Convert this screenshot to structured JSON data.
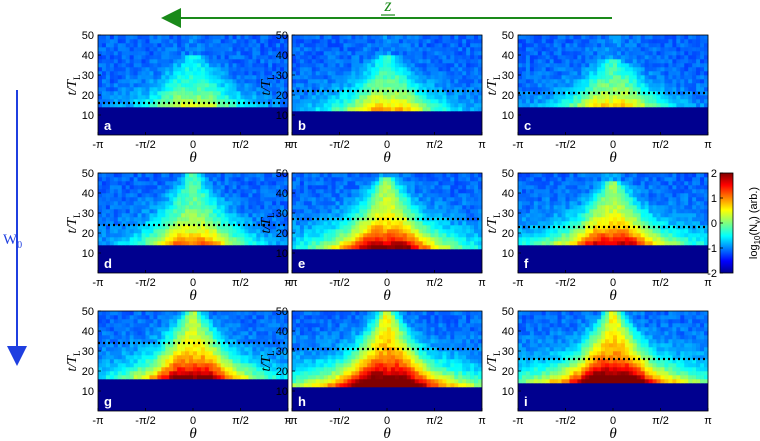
{
  "figure": {
    "top_arrow_label": "z",
    "left_arrow_label": "W",
    "left_arrow_subscript": "0",
    "colors": {
      "top_arrow": "#1a8a1a",
      "left_arrow": "#1f3fe0",
      "threshold_line": "#000000"
    }
  },
  "chart_data": [
    {
      "type": "heatmap",
      "panel": "a",
      "xlabel": "θ",
      "ylabel": "t/T",
      "ylabel_sub": "L",
      "xticks": [
        "-π",
        "-π/2",
        "0",
        "π/2",
        "π"
      ],
      "yticks": [
        "10",
        "20",
        "30",
        "40",
        "50"
      ],
      "xlim": [
        -3.1416,
        3.1416
      ],
      "ylim": [
        0,
        50
      ],
      "threshold_t": 16,
      "intensity": 0.35,
      "emission_start_t": 14.5,
      "wing_width": 1.0,
      "cone_top_t": 40
    },
    {
      "type": "heatmap",
      "panel": "b",
      "xlabel": "θ",
      "ylabel": "t/T",
      "ylabel_sub": "L",
      "xticks": [
        "-π",
        "-π/2",
        "0",
        "π/2",
        "π"
      ],
      "yticks": [
        "10",
        "20",
        "30",
        "40",
        "50"
      ],
      "xlim": [
        -3.1416,
        3.1416
      ],
      "ylim": [
        0,
        50
      ],
      "threshold_t": 22,
      "intensity": 0.45,
      "emission_start_t": 13,
      "wing_width": 1.1,
      "cone_top_t": 40
    },
    {
      "type": "heatmap",
      "panel": "c",
      "xlabel": "θ",
      "ylabel": "t/T",
      "ylabel_sub": "L",
      "xticks": [
        "-π",
        "-π/2",
        "0",
        "π/2",
        "π"
      ],
      "yticks": [
        "10",
        "20",
        "30",
        "40",
        "50"
      ],
      "xlim": [
        -3.1416,
        3.1416
      ],
      "ylim": [
        0,
        50
      ],
      "threshold_t": 21,
      "intensity": 0.45,
      "emission_start_t": 14,
      "wing_width": 1.0,
      "cone_top_t": 38
    },
    {
      "type": "heatmap",
      "panel": "d",
      "xlabel": "θ",
      "ylabel": "t/T",
      "ylabel_sub": "L",
      "xticks": [
        "-π",
        "-π/2",
        "0",
        "π/2",
        "π"
      ],
      "yticks": [
        "10",
        "20",
        "30",
        "40",
        "50"
      ],
      "xlim": [
        -3.1416,
        3.1416
      ],
      "ylim": [
        0,
        50
      ],
      "threshold_t": 24,
      "intensity": 0.55,
      "emission_start_t": 14,
      "wing_width": 1.0,
      "cone_top_t": 50
    },
    {
      "type": "heatmap",
      "panel": "e",
      "xlabel": "θ",
      "ylabel": "t/T",
      "ylabel_sub": "L",
      "xticks": [
        "-π",
        "-π/2",
        "0",
        "π/2",
        "π"
      ],
      "yticks": [
        "10",
        "20",
        "30",
        "40",
        "50"
      ],
      "xlim": [
        -3.1416,
        3.1416
      ],
      "ylim": [
        0,
        50
      ],
      "threshold_t": 27,
      "intensity": 0.75,
      "emission_start_t": 13,
      "wing_width": 1.4,
      "cone_top_t": 48
    },
    {
      "type": "heatmap",
      "panel": "f",
      "xlabel": "θ",
      "ylabel": "t/T",
      "ylabel_sub": "L",
      "xticks": [
        "-π",
        "-π/2",
        "0",
        "π/2",
        "π"
      ],
      "yticks": [
        "10",
        "20",
        "30",
        "40",
        "50"
      ],
      "xlim": [
        -3.1416,
        3.1416
      ],
      "ylim": [
        0,
        50
      ],
      "threshold_t": 23,
      "intensity": 0.7,
      "emission_start_t": 14,
      "wing_width": 1.5,
      "cone_top_t": 46
    },
    {
      "type": "heatmap",
      "panel": "g",
      "xlabel": "θ",
      "ylabel": "t/T",
      "ylabel_sub": "L",
      "xticks": [
        "-π",
        "-π/2",
        "0",
        "π/2",
        "π"
      ],
      "yticks": [
        "10",
        "20",
        "30",
        "40",
        "50"
      ],
      "xlim": [
        -3.1416,
        3.1416
      ],
      "ylim": [
        0,
        50
      ],
      "threshold_t": 34,
      "intensity": 0.8,
      "emission_start_t": 16,
      "wing_width": 1.3,
      "cone_top_t": 50
    },
    {
      "type": "heatmap",
      "panel": "h",
      "xlabel": "θ",
      "ylabel": "t/T",
      "ylabel_sub": "L",
      "xticks": [
        "-π",
        "-π/2",
        "0",
        "π/2",
        "π"
      ],
      "yticks": [
        "10",
        "20",
        "30",
        "40",
        "50"
      ],
      "xlim": [
        -3.1416,
        3.1416
      ],
      "ylim": [
        0,
        50
      ],
      "threshold_t": 31,
      "intensity": 0.95,
      "emission_start_t": 13,
      "wing_width": 1.8,
      "cone_top_t": 50
    },
    {
      "type": "heatmap",
      "panel": "i",
      "xlabel": "θ",
      "ylabel": "t/T",
      "ylabel_sub": "L",
      "xticks": [
        "-π",
        "-π/2",
        "0",
        "π/2",
        "π"
      ],
      "yticks": [
        "10",
        "20",
        "30",
        "40",
        "50"
      ],
      "xlim": [
        -3.1416,
        3.1416
      ],
      "ylim": [
        0,
        50
      ],
      "threshold_t": 26,
      "intensity": 0.95,
      "emission_start_t": 14,
      "wing_width": 1.8,
      "cone_top_t": 50
    }
  ],
  "colorbar": {
    "label": "log",
    "label_sub": "10",
    "label_rest": "(N",
    "label_sub2": "γ",
    "label_end": ") (arb.)",
    "ticks": [
      "2",
      "1",
      "0",
      "-1",
      "-2"
    ],
    "range": [
      -2,
      2
    ],
    "colormap": "jet"
  }
}
